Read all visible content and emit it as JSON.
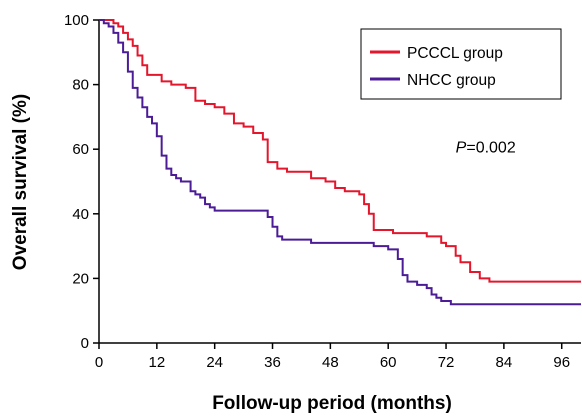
{
  "chart_data": {
    "type": "line",
    "title": "",
    "xlabel": "Follow-up period (months)",
    "ylabel": "Overall survival (%)",
    "xlim": [
      0,
      100
    ],
    "ylim": [
      0,
      100
    ],
    "x_ticks": [
      0,
      12,
      24,
      36,
      48,
      60,
      72,
      84,
      96
    ],
    "y_ticks": [
      0,
      20,
      40,
      60,
      80,
      100
    ],
    "grid": false,
    "step": true,
    "legend": {
      "position": "top-right"
    },
    "annotation": {
      "prefix": "P",
      "text": "=0.002",
      "x": 74,
      "y": 59
    },
    "series": [
      {
        "name": "PCCCL group",
        "color": "#e3162c",
        "points": [
          [
            0,
            100
          ],
          [
            2,
            100
          ],
          [
            3,
            99
          ],
          [
            4,
            98
          ],
          [
            5,
            96
          ],
          [
            6,
            94
          ],
          [
            7,
            92
          ],
          [
            8,
            89
          ],
          [
            9,
            86
          ],
          [
            10,
            83
          ],
          [
            13,
            81
          ],
          [
            15,
            80
          ],
          [
            18,
            79
          ],
          [
            20,
            75
          ],
          [
            22,
            74
          ],
          [
            24,
            73
          ],
          [
            26,
            71
          ],
          [
            28,
            68
          ],
          [
            30,
            67
          ],
          [
            32,
            65
          ],
          [
            34,
            63
          ],
          [
            35,
            56
          ],
          [
            36,
            56
          ],
          [
            37,
            54
          ],
          [
            39,
            53
          ],
          [
            44,
            51
          ],
          [
            47,
            50
          ],
          [
            49,
            48
          ],
          [
            51,
            47
          ],
          [
            54,
            46
          ],
          [
            55,
            43
          ],
          [
            56,
            40
          ],
          [
            57,
            35
          ],
          [
            59,
            35
          ],
          [
            61,
            34
          ],
          [
            68,
            33
          ],
          [
            71,
            31
          ],
          [
            72,
            30
          ],
          [
            74,
            27
          ],
          [
            75,
            25
          ],
          [
            77,
            22
          ],
          [
            79,
            20
          ],
          [
            81,
            19
          ],
          [
            100,
            19
          ]
        ]
      },
      {
        "name": "NHCC group",
        "color": "#4b1c96",
        "points": [
          [
            0,
            100
          ],
          [
            1,
            99
          ],
          [
            2,
            98
          ],
          [
            3,
            96
          ],
          [
            4,
            93
          ],
          [
            5,
            90
          ],
          [
            6,
            84
          ],
          [
            7,
            79
          ],
          [
            8,
            76
          ],
          [
            9,
            73
          ],
          [
            10,
            70
          ],
          [
            11,
            68
          ],
          [
            12,
            64
          ],
          [
            13,
            58
          ],
          [
            14,
            54
          ],
          [
            15,
            52
          ],
          [
            16,
            51
          ],
          [
            17,
            50
          ],
          [
            19,
            47
          ],
          [
            20,
            46
          ],
          [
            21,
            45
          ],
          [
            22,
            43
          ],
          [
            23,
            42
          ],
          [
            24,
            41
          ],
          [
            27,
            41
          ],
          [
            29,
            41
          ],
          [
            31,
            41
          ],
          [
            35,
            39
          ],
          [
            36,
            36
          ],
          [
            37,
            33
          ],
          [
            38,
            32
          ],
          [
            40,
            32
          ],
          [
            44,
            31
          ],
          [
            49,
            31
          ],
          [
            54,
            31
          ],
          [
            57,
            30
          ],
          [
            60,
            29
          ],
          [
            62,
            26
          ],
          [
            63,
            21
          ],
          [
            64,
            19
          ],
          [
            66,
            18
          ],
          [
            68,
            17
          ],
          [
            69,
            15
          ],
          [
            70,
            14
          ],
          [
            71,
            13
          ],
          [
            73,
            12
          ],
          [
            84,
            12
          ],
          [
            100,
            12
          ]
        ]
      }
    ]
  }
}
